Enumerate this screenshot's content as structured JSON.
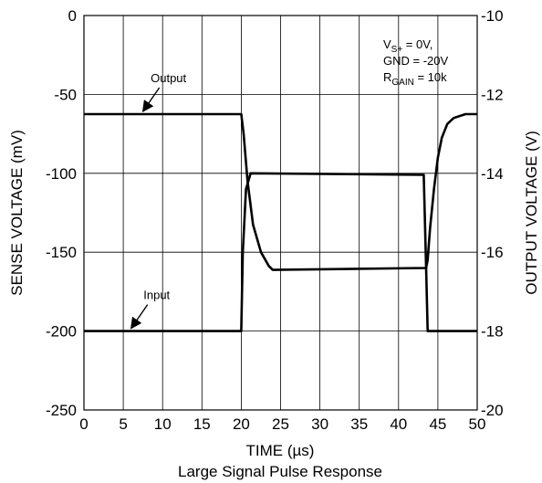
{
  "chart_data": {
    "type": "line",
    "title": "",
    "caption": "Large Signal Pulse Response",
    "xlabel": "TIME (µs)",
    "ylabel_left": "SENSE VOLTAGE (mV)",
    "ylabel_right": "OUTPUT VOLTAGE (V)",
    "xlim": [
      0,
      50
    ],
    "ylim_left": [
      -250,
      0
    ],
    "ylim_right": [
      -20,
      -10
    ],
    "x_ticks": [
      "0",
      "5",
      "10",
      "15",
      "20",
      "25",
      "30",
      "35",
      "40",
      "45",
      "50"
    ],
    "y_ticks_left": [
      "0",
      "-50",
      "-100",
      "-150",
      "-200",
      "-250"
    ],
    "y_ticks_right": [
      "-10",
      "-12",
      "-14",
      "-16",
      "-18",
      "-20"
    ],
    "grid": true,
    "conditions": {
      "vs": {
        "main": "V",
        "sub": "S+",
        "rest": " = 0V,"
      },
      "gnd": "GND = -20V",
      "rgain": {
        "main": "R",
        "sub": "GAIN",
        "rest": " = 10k"
      }
    },
    "series": [
      {
        "name": "Input",
        "axis": "left",
        "x": [
          0,
          20.0,
          20.2,
          20.6,
          21.2,
          43.2,
          43.5,
          43.7,
          50
        ],
        "y": [
          -200,
          -200,
          -150,
          -110,
          -100,
          -101,
          -160,
          -200,
          -200
        ]
      },
      {
        "name": "Output",
        "axis": "right",
        "x": [
          0,
          20.0,
          20.3,
          20.8,
          21.5,
          22.5,
          23.5,
          24.0,
          43.5,
          43.7,
          44.0,
          44.5,
          45.0,
          45.5,
          46.2,
          47.0,
          48.5,
          50
        ],
        "y": [
          -12.5,
          -12.5,
          -13.0,
          -14.2,
          -15.3,
          -16.0,
          -16.35,
          -16.45,
          -16.4,
          -16.2,
          -15.4,
          -14.4,
          -13.6,
          -13.1,
          -12.75,
          -12.6,
          -12.5,
          -12.5
        ]
      }
    ],
    "annotations": [
      {
        "text": "Output",
        "series": "Output",
        "at_x": 7.5
      },
      {
        "text": "Input",
        "series": "Input",
        "at_x": 6.0
      }
    ]
  }
}
